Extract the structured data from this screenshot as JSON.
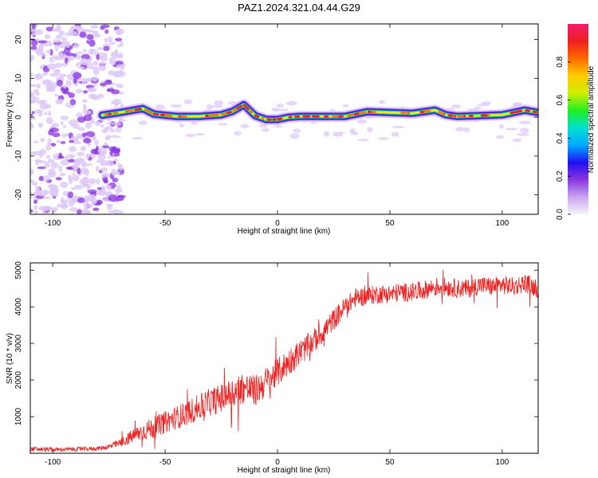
{
  "figure": {
    "title": "PAZ1.2024.321.04.44.G29"
  },
  "colors": {
    "snr_line": "#ee2222",
    "ridge_low": "#3322ee",
    "ridge_mid": "#11dd88",
    "ridge_high": "#ee2222",
    "noise_light": "#ddc8f6",
    "noise_dark": "#8a34e0"
  },
  "chart_data": [
    {
      "type": "heatmap",
      "title": "",
      "xlabel": "Height of straight line (km)",
      "ylabel": "Frequency (Hz)",
      "xlim": [
        -110,
        116
      ],
      "ylim": [
        -25,
        24
      ],
      "xticks": [
        -100,
        -50,
        0,
        50,
        100
      ],
      "yticks": [
        20,
        10,
        0,
        -10,
        -20
      ],
      "ytick_labels": [
        "20",
        "10",
        "0",
        "-10",
        "-20"
      ],
      "noise_region_x": [
        -110,
        -75
      ],
      "ridge": {
        "x": [
          -78,
          -70,
          -60,
          -55,
          -45,
          -35,
          -25,
          -20,
          -15,
          -10,
          -5,
          0,
          5,
          10,
          20,
          30,
          40,
          50,
          60,
          70,
          75,
          80,
          90,
          100,
          110,
          116
        ],
        "freq": [
          0.5,
          1.2,
          2.2,
          0.8,
          0.2,
          0.2,
          0.6,
          1.5,
          3.2,
          0.4,
          -0.6,
          -0.6,
          0.0,
          0.2,
          0.2,
          0.2,
          1.4,
          1.2,
          1.0,
          1.8,
          0.6,
          0.2,
          0.4,
          0.6,
          1.8,
          1.2
        ]
      },
      "colorbar": {
        "label": "Normalized spectral amplitude",
        "range": [
          0.0,
          1.0
        ],
        "ticks": [
          0.0,
          0.2,
          0.4,
          0.6,
          0.8
        ],
        "tick_labels": [
          "0.0",
          "0.2",
          "0.4",
          "0.6",
          "0.8"
        ],
        "colormap": [
          "#f7f4fb",
          "#c9a4ef",
          "#8a34e0",
          "#1f10f0",
          "#00aaff",
          "#00e0d0",
          "#22ee22",
          "#cfee00",
          "#ffcc00",
          "#ff6a00",
          "#ee1f1f",
          "#f01f6e"
        ]
      },
      "grid": false
    },
    {
      "type": "line",
      "title": "",
      "xlabel": "Height of straight line (km)",
      "ylabel": "SNR (10 * v/v)",
      "xlim": [
        -110,
        116
      ],
      "ylim": [
        0,
        5200
      ],
      "xticks": [
        -100,
        -50,
        0,
        50,
        100
      ],
      "yticks": [
        1000,
        2000,
        3000,
        4000,
        5000
      ],
      "series": [
        {
          "x": [
            -110,
            -100,
            -90,
            -80,
            -75,
            -70,
            -65,
            -60,
            -55,
            -50,
            -45,
            -40,
            -35,
            -30,
            -25,
            -20,
            -15,
            -10,
            -5,
            0,
            5,
            10,
            15,
            20,
            25,
            30,
            35,
            40,
            45,
            50,
            55,
            60,
            65,
            70,
            75,
            80,
            85,
            90,
            95,
            100,
            105,
            110,
            116
          ],
          "y": [
            120,
            100,
            110,
            130,
            180,
            280,
            450,
            600,
            700,
            850,
            980,
            1100,
            1250,
            1400,
            1500,
            1650,
            1800,
            1700,
            1950,
            2200,
            2500,
            2750,
            3000,
            3300,
            3650,
            4000,
            4250,
            4300,
            4350,
            4350,
            4400,
            4400,
            4450,
            4550,
            4550,
            4500,
            4500,
            4600,
            4550,
            4600,
            4550,
            4650,
            4500
          ],
          "noise_amplitude": [
            60,
            60,
            60,
            60,
            80,
            120,
            200,
            250,
            300,
            300,
            320,
            340,
            360,
            380,
            400,
            430,
            450,
            430,
            420,
            400,
            380,
            360,
            340,
            320,
            300,
            280,
            260,
            260,
            260,
            260,
            260,
            260,
            260,
            260,
            260,
            260,
            260,
            260,
            260,
            260,
            260,
            260,
            260
          ]
        }
      ],
      "grid": false
    }
  ]
}
